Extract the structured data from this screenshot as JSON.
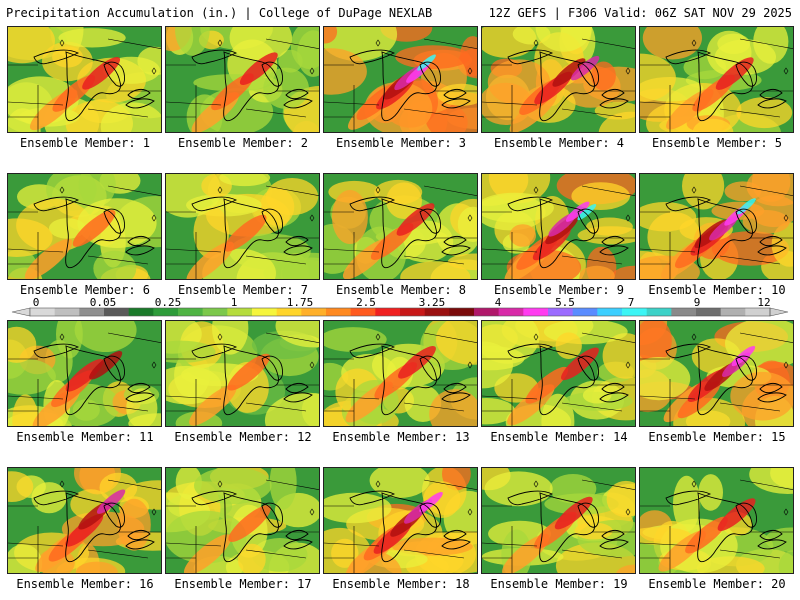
{
  "header": {
    "title": "Precipitation Accumulation (in.) | College of DuPage NEXLAB",
    "run_info": "12Z GEFS | F306 Valid: 06Z SAT NOV 29 2025"
  },
  "members": [
    {
      "label": "Ensemble Member: 1",
      "intensity": 0.9
    },
    {
      "label": "Ensemble Member: 2",
      "intensity": 0.9
    },
    {
      "label": "Ensemble Member: 3",
      "intensity": 2.2
    },
    {
      "label": "Ensemble Member: 4",
      "intensity": 1.8
    },
    {
      "label": "Ensemble Member: 5",
      "intensity": 1.1
    },
    {
      "label": "Ensemble Member: 6",
      "intensity": 0.8
    },
    {
      "label": "Ensemble Member: 7",
      "intensity": 0.7
    },
    {
      "label": "Ensemble Member: 8",
      "intensity": 1.0
    },
    {
      "label": "Ensemble Member: 9",
      "intensity": 2.3
    },
    {
      "label": "Ensemble Member: 10",
      "intensity": 2.3
    },
    {
      "label": "Ensemble Member: 11",
      "intensity": 1.2
    },
    {
      "label": "Ensemble Member: 12",
      "intensity": 0.7
    },
    {
      "label": "Ensemble Member: 13",
      "intensity": 1.0
    },
    {
      "label": "Ensemble Member: 14",
      "intensity": 1.1
    },
    {
      "label": "Ensemble Member: 15",
      "intensity": 2.0
    },
    {
      "label": "Ensemble Member: 16",
      "intensity": 1.7
    },
    {
      "label": "Ensemble Member: 17",
      "intensity": 0.8
    },
    {
      "label": "Ensemble Member: 18",
      "intensity": 2.1
    },
    {
      "label": "Ensemble Member: 19",
      "intensity": 0.9
    },
    {
      "label": "Ensemble Member: 20",
      "intensity": 0.9
    }
  ],
  "legend": {
    "ticks": [
      "0",
      "0.05",
      "0.25",
      "1",
      "1.75",
      "2.5",
      "3.25",
      "4",
      "5.5",
      "7",
      "9",
      "12"
    ],
    "colors": [
      "#d9d9d9",
      "#bfbfbf",
      "#8f8f8f",
      "#5a5a5a",
      "#1a7a2a",
      "#2d9c3a",
      "#4fb443",
      "#7cc84b",
      "#b5dc3c",
      "#f5f53c",
      "#ffd52a",
      "#ffb02a",
      "#ff8a20",
      "#ff5a1e",
      "#f02020",
      "#c81818",
      "#9a1010",
      "#7a0a0a",
      "#b0186a",
      "#d82aa8",
      "#ff3cf0",
      "#9b6bff",
      "#5a8cff",
      "#3ccfff",
      "#3cf5f5",
      "#3cd2c8",
      "#8a8a8a",
      "#6e6e6e",
      "#b0b0b0",
      "#d0d0d0"
    ]
  }
}
